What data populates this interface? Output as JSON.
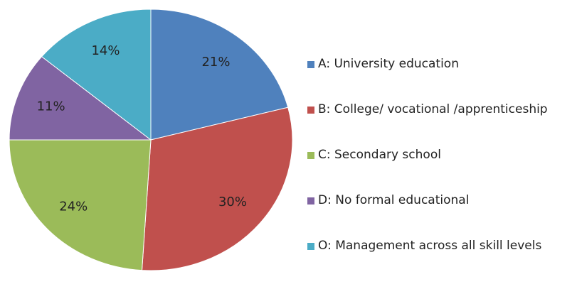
{
  "chart_data": {
    "type": "pie",
    "categories": [
      "A: University education",
      "B: College/ vocational /apprenticeship",
      "C: Secondary school",
      "D: No formal educational",
      "O: Management across all skill levels"
    ],
    "values": [
      21,
      30,
      24,
      11,
      14
    ],
    "value_labels": [
      "21%",
      "30%",
      "24%",
      "11%",
      "14%"
    ],
    "colors": [
      "#4f81bd",
      "#c0504d",
      "#9bbb59",
      "#8064a2",
      "#4bacc6"
    ],
    "legend": "right"
  }
}
